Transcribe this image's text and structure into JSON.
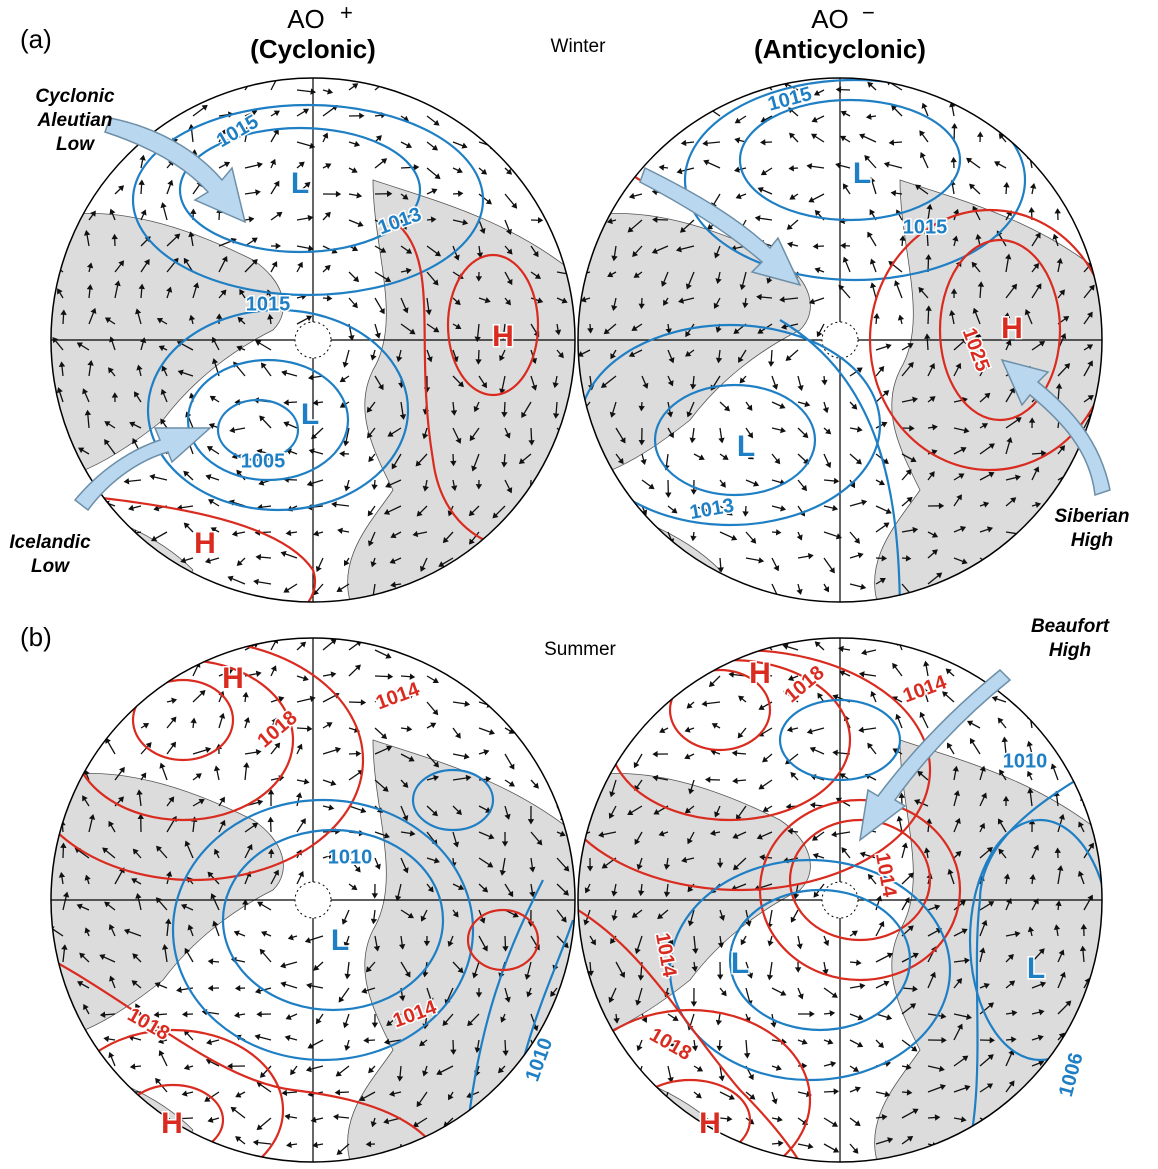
{
  "panels": [
    {
      "label": "(a)",
      "season": "Winter"
    },
    {
      "label": "(b)",
      "season": "Summer"
    }
  ],
  "columns": [
    {
      "title": "AO",
      "sign": "+",
      "subtitle": "(Cyclonic)"
    },
    {
      "title": "AO",
      "sign": "−",
      "subtitle": "(Anticyclonic)"
    }
  ],
  "callouts": [
    {
      "lines": [
        "Cyclonic",
        "Aleutian",
        "Low"
      ]
    },
    {
      "lines": [
        "Icelandic",
        "Low"
      ]
    },
    {
      "lines": [
        "Siberian",
        "High"
      ]
    },
    {
      "lines": [
        "Beaufort",
        "High"
      ]
    }
  ],
  "maps": [
    {
      "labels": [
        "L",
        "1015",
        "1013",
        "1015",
        "H",
        "L",
        "1005",
        "H"
      ]
    },
    {
      "labels": [
        "1015",
        "L",
        "1015",
        "H",
        "1025",
        "L",
        "1013"
      ]
    },
    {
      "labels": [
        "H",
        "1018",
        "1014",
        "1010",
        "L",
        "1018",
        "1014",
        "1010",
        "H"
      ]
    },
    {
      "labels": [
        "H",
        "1018",
        "1014",
        "1010",
        "1014",
        "L",
        "1014",
        "1018",
        "L",
        "1006",
        "H"
      ]
    }
  ]
}
